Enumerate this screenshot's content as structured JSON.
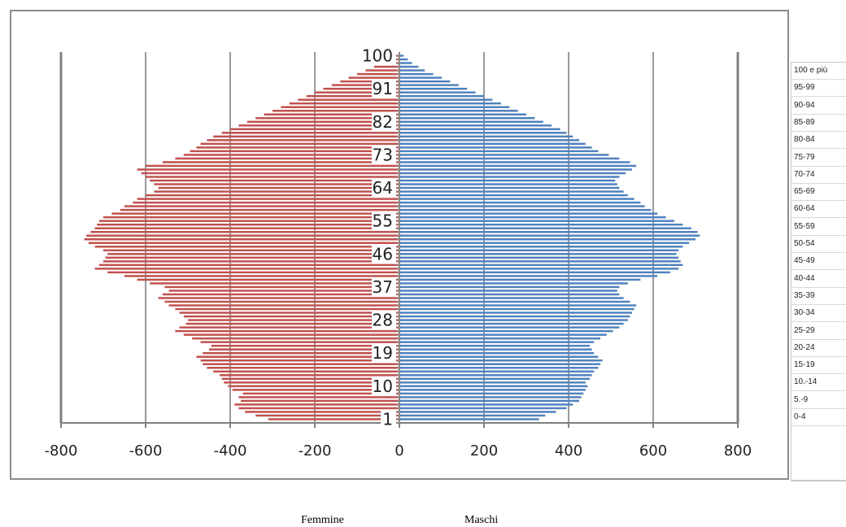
{
  "chart_data": {
    "type": "bar",
    "orientation": "horizontal",
    "xlim": [
      -800,
      800
    ],
    "x_ticks": [
      "-800",
      "-600",
      "-400",
      "-200",
      "0",
      "200",
      "400",
      "600",
      "800"
    ],
    "y_ticks": [
      "100",
      "91",
      "82",
      "73",
      "64",
      "55",
      "46",
      "37",
      "28",
      "19",
      "10",
      "1"
    ],
    "ages": [
      1,
      2,
      3,
      4,
      5,
      6,
      7,
      8,
      9,
      10,
      11,
      12,
      13,
      14,
      15,
      16,
      17,
      18,
      19,
      20,
      21,
      22,
      23,
      24,
      25,
      26,
      27,
      28,
      29,
      30,
      31,
      32,
      33,
      34,
      35,
      36,
      37,
      38,
      39,
      40,
      41,
      42,
      43,
      44,
      45,
      46,
      47,
      48,
      49,
      50,
      51,
      52,
      53,
      54,
      55,
      56,
      57,
      58,
      59,
      60,
      61,
      62,
      63,
      64,
      65,
      66,
      67,
      68,
      69,
      70,
      71,
      72,
      73,
      74,
      75,
      76,
      77,
      78,
      79,
      80,
      81,
      82,
      83,
      84,
      85,
      86,
      87,
      88,
      89,
      90,
      91,
      92,
      93,
      94,
      95,
      96,
      97,
      98,
      99,
      100
    ],
    "series": [
      {
        "name": "Femmine",
        "color": "#c0504d",
        "values": [
          -310,
          -340,
          -365,
          -380,
          -390,
          -375,
          -380,
          -370,
          -395,
          -405,
          -415,
          -420,
          -425,
          -440,
          -455,
          -465,
          -470,
          -480,
          -465,
          -450,
          -445,
          -470,
          -490,
          -510,
          -530,
          -520,
          -505,
          -500,
          -510,
          -520,
          -530,
          -545,
          -555,
          -570,
          -560,
          -545,
          -555,
          -590,
          -620,
          -650,
          -690,
          -720,
          -710,
          -700,
          -695,
          -690,
          -700,
          -720,
          -735,
          -745,
          -740,
          -730,
          -720,
          -715,
          -710,
          -700,
          -680,
          -660,
          -650,
          -630,
          -620,
          -600,
          -580,
          -570,
          -580,
          -590,
          -600,
          -610,
          -620,
          -600,
          -560,
          -530,
          -510,
          -495,
          -480,
          -470,
          -455,
          -440,
          -420,
          -400,
          -380,
          -360,
          -340,
          -320,
          -300,
          -280,
          -260,
          -240,
          -220,
          -200,
          -180,
          -160,
          -140,
          -120,
          -100,
          -80,
          -60,
          -40,
          -20,
          -10
        ]
      },
      {
        "name": "Maschi",
        "color": "#4f81bd",
        "values": [
          330,
          345,
          370,
          395,
          410,
          425,
          430,
          435,
          440,
          445,
          440,
          450,
          455,
          460,
          470,
          475,
          480,
          470,
          460,
          455,
          450,
          460,
          475,
          490,
          505,
          520,
          530,
          540,
          545,
          550,
          555,
          560,
          545,
          530,
          520,
          515,
          520,
          540,
          570,
          610,
          640,
          660,
          670,
          665,
          660,
          655,
          660,
          670,
          685,
          700,
          710,
          705,
          690,
          670,
          650,
          630,
          610,
          595,
          580,
          570,
          555,
          540,
          530,
          520,
          515,
          510,
          520,
          535,
          550,
          560,
          545,
          520,
          495,
          470,
          455,
          440,
          425,
          410,
          395,
          380,
          360,
          340,
          320,
          300,
          280,
          260,
          240,
          220,
          200,
          180,
          160,
          140,
          120,
          100,
          80,
          60,
          45,
          30,
          20,
          10
        ]
      }
    ],
    "legend": [
      "Femmine",
      "Maschi"
    ],
    "grid": "vertical"
  },
  "side_panel": {
    "age_classes": [
      "100 e più",
      "95-99",
      "90-94",
      "85-89",
      "80-84",
      "75-79",
      "70-74",
      "65-69",
      "60-64",
      "55-59",
      "50-54",
      "45-49",
      "40-44",
      "35-39",
      "30-34",
      "25-29",
      "20-24",
      "15-19",
      "10.-14",
      "5.-9",
      "0-4"
    ]
  }
}
